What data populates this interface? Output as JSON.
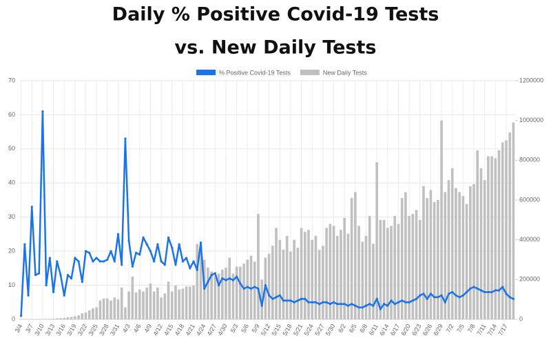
{
  "chart_data": {
    "type": "combo",
    "title": [
      "Daily % Positive Covid-19 Tests",
      "vs. New Daily Tests"
    ],
    "categories": [
      "3/4",
      null,
      null,
      "3/7",
      null,
      null,
      "3/10",
      null,
      null,
      "3/13",
      null,
      null,
      "3/16",
      null,
      null,
      "3/19",
      null,
      null,
      "3/22",
      null,
      null,
      "3/25",
      null,
      null,
      "3/28",
      null,
      null,
      "3/31",
      null,
      null,
      "4/3",
      null,
      null,
      "4/6",
      null,
      null,
      "4/9",
      null,
      null,
      "4/12",
      null,
      null,
      "4/15",
      null,
      null,
      "4/18",
      null,
      null,
      "4/21",
      null,
      null,
      "4/24",
      null,
      null,
      "4/27",
      null,
      null,
      "4/30",
      null,
      null,
      "5/3",
      null,
      null,
      "5/6",
      null,
      null,
      "5/9",
      null,
      null,
      "5/12",
      null,
      null,
      "5/15",
      null,
      null,
      "5/18",
      null,
      null,
      "5/21",
      null,
      null,
      "5/24",
      null,
      null,
      "5/27",
      null,
      null,
      "5/30",
      null,
      null,
      "6/2",
      null,
      null,
      "6/5",
      null,
      null,
      "6/8",
      null,
      null,
      "6/11",
      null,
      null,
      "6/14",
      null,
      null,
      "6/17",
      null,
      null,
      "6/20",
      null,
      null,
      "6/23",
      null,
      null,
      "6/26",
      null,
      null,
      "6/29",
      null,
      null,
      "7/2",
      null,
      null,
      "7/5",
      null,
      null,
      "7/8",
      null,
      null,
      "7/11",
      null,
      null,
      "7/14",
      null,
      null,
      "7/17",
      null,
      null
    ],
    "series": [
      {
        "name": "% Positive Covid-19 Tests",
        "type": "line",
        "color": "#1a73e8",
        "values": [
          1,
          22,
          7,
          33,
          13,
          13.5,
          61,
          10,
          18,
          8,
          17,
          13,
          7,
          13,
          12,
          18,
          17,
          11,
          20,
          19.5,
          17,
          18,
          17,
          17,
          17.5,
          20,
          17,
          25,
          16,
          53,
          23,
          15.5,
          19.5,
          19,
          24,
          22,
          20,
          17,
          22,
          17,
          16,
          24,
          21,
          16,
          22,
          17,
          18,
          15,
          17,
          14.5,
          22.5,
          9,
          11,
          13,
          13.5,
          10,
          12,
          11.5,
          12,
          11.5,
          12.5,
          10.5,
          9,
          9.5,
          9,
          9.5,
          9,
          4,
          10,
          7,
          6,
          6.5,
          7,
          5.5,
          5.5,
          5.5,
          5,
          5.5,
          6,
          6,
          5,
          5,
          5,
          4.5,
          5,
          5,
          4.5,
          5,
          4.5,
          4.5,
          4.5,
          4,
          4.5,
          4,
          3.5,
          3.5,
          4,
          4.5,
          4,
          6,
          3,
          4.5,
          4,
          5.5,
          4.5,
          5,
          5.5,
          5,
          5,
          5.5,
          6,
          7,
          7.5,
          6,
          7.5,
          6.5,
          6.5,
          7,
          5,
          7.5,
          8,
          7,
          6.5,
          7,
          8,
          9,
          9.5,
          9,
          8.5,
          8,
          8,
          8,
          8.5,
          8.5,
          9.5,
          7.5,
          6.5,
          6
        ]
      },
      {
        "name": "New Daily Tests",
        "type": "bar",
        "axis": "y2",
        "color": "#c0c0c0",
        "values": [
          0,
          0,
          0,
          0,
          0,
          1000,
          1000,
          2000,
          2000,
          3000,
          5000,
          6000,
          7000,
          10000,
          12000,
          15000,
          20000,
          30000,
          35000,
          45000,
          55000,
          60000,
          95000,
          105000,
          105000,
          95000,
          110000,
          100000,
          160000,
          60000,
          140000,
          215000,
          135000,
          150000,
          140000,
          160000,
          180000,
          140000,
          160000,
          110000,
          130000,
          190000,
          140000,
          170000,
          150000,
          155000,
          165000,
          165000,
          170000,
          380000,
          370000,
          300000,
          260000,
          240000,
          220000,
          230000,
          250000,
          260000,
          310000,
          230000,
          265000,
          265000,
          280000,
          300000,
          320000,
          290000,
          530000,
          200000,
          310000,
          330000,
          370000,
          460000,
          400000,
          350000,
          420000,
          340000,
          400000,
          360000,
          460000,
          440000,
          450000,
          400000,
          420000,
          350000,
          370000,
          460000,
          480000,
          470000,
          420000,
          450000,
          510000,
          430000,
          610000,
          640000,
          470000,
          390000,
          420000,
          520000,
          380000,
          790000,
          500000,
          500000,
          460000,
          470000,
          520000,
          480000,
          610000,
          640000,
          520000,
          530000,
          550000,
          500000,
          670000,
          610000,
          650000,
          590000,
          600000,
          1000000,
          640000,
          700000,
          760000,
          660000,
          640000,
          620000,
          580000,
          670000,
          680000,
          850000,
          760000,
          700000,
          820000,
          820000,
          810000,
          850000,
          890000,
          900000,
          940000,
          990000
        ]
      }
    ],
    "ylim": [
      0,
      70
    ],
    "yticks": [
      0,
      10,
      20,
      30,
      40,
      50,
      60,
      70
    ],
    "y2lim": [
      0,
      1200000
    ],
    "y2ticks": [
      0,
      200000,
      400000,
      600000,
      800000,
      1000000,
      1200000
    ],
    "grid": true,
    "legend": "top"
  }
}
